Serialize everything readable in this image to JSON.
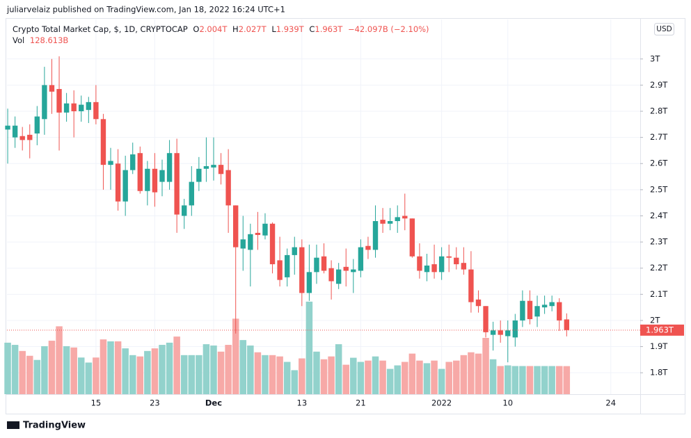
{
  "header": "juliarvelaiz published on TradingView.com, Jan 18, 2022 16:24 UTC+1",
  "footer": "TradingView",
  "currency_button": "USD",
  "legend": {
    "symbol": "Crypto Total Market Cap, $, 1D, CRYPTOCAP",
    "ohlc": [
      {
        "label": "O",
        "value": "2.004T"
      },
      {
        "label": "H",
        "value": "2.027T"
      },
      {
        "label": "L",
        "value": "1.939T"
      },
      {
        "label": "C",
        "value": "1.963T"
      }
    ],
    "change": "−42.097B (−2.10%)",
    "volume_label": "Vol",
    "volume_value": "128.613B"
  },
  "chart_data": {
    "type": "candlestick",
    "up_color": "#26a69a",
    "down_color": "#ef5350",
    "volume_up_color": "#92d2cc",
    "volume_down_color": "#f7a9a7",
    "grid": true,
    "xlim": [
      -0.1,
      86
    ],
    "xticks": [
      {
        "value": 12,
        "label": "15"
      },
      {
        "value": 20,
        "label": "23"
      },
      {
        "value": 28,
        "label": "Dec"
      },
      {
        "value": 40,
        "label": "13"
      },
      {
        "value": 48,
        "label": "21"
      },
      {
        "value": 59,
        "label": "2022"
      },
      {
        "value": 68,
        "label": "10"
      },
      {
        "value": 82,
        "label": "24"
      }
    ],
    "ylim": [
      1.718,
      3.151
    ],
    "yticks": [
      {
        "value": 1.8,
        "label": "1.8T"
      },
      {
        "value": 1.9,
        "label": "1.9T"
      },
      {
        "value": 2.0,
        "label": "2T"
      },
      {
        "value": 2.1,
        "label": "2.1T"
      },
      {
        "value": 2.2,
        "label": "2.2T"
      },
      {
        "value": 2.3,
        "label": "2.3T"
      },
      {
        "value": 2.4,
        "label": "2.4T"
      },
      {
        "value": 2.5,
        "label": "2.5T"
      },
      {
        "value": 2.6,
        "label": "2.6T"
      },
      {
        "value": 2.7,
        "label": "2.7T"
      },
      {
        "value": 2.8,
        "label": "2.8T"
      },
      {
        "value": 2.9,
        "label": "2.9T"
      },
      {
        "value": 3.0,
        "label": "3T"
      }
    ],
    "vlim": [
      0,
      500
    ],
    "last_price": {
      "value": 1.963,
      "label": "1.963T"
    },
    "open": [
      2.73,
      2.7,
      2.705,
      2.71,
      2.715,
      2.77,
      2.9,
      2.885,
      2.795,
      2.83,
      2.8,
      2.805,
      2.835,
      2.77,
      2.595,
      2.6,
      2.455,
      2.575,
      2.64,
      2.495,
      2.58,
      2.53,
      2.53,
      2.64,
      2.4,
      2.44,
      2.53,
      2.58,
      2.585,
      2.595,
      2.575,
      2.44,
      2.275,
      2.27,
      2.335,
      2.325,
      2.37,
      2.23,
      2.165,
      2.25,
      2.28,
      2.105,
      2.185,
      2.245,
      2.2,
      2.14,
      2.205,
      2.185,
      2.19,
      2.285,
      2.27,
      2.385,
      2.37,
      2.38,
      2.4,
      2.39,
      2.245,
      2.185,
      2.215,
      2.185,
      2.245,
      2.24,
      2.22,
      2.195,
      2.08,
      2.055,
      1.945,
      1.962,
      1.94,
      1.935,
      2.0,
      2.075,
      2.015,
      2.05,
      2.055,
      2.07,
      2.004
    ],
    "high": [
      2.81,
      2.78,
      2.74,
      2.75,
      2.82,
      2.97,
      3.0,
      3.01,
      2.87,
      2.88,
      2.86,
      2.855,
      2.9,
      2.79,
      2.66,
      2.655,
      2.63,
      2.68,
      2.665,
      2.61,
      2.64,
      2.615,
      2.69,
      2.695,
      2.465,
      2.59,
      2.625,
      2.7,
      2.7,
      2.64,
      2.655,
      2.44,
      2.4,
      2.37,
      2.415,
      2.41,
      2.375,
      2.32,
      2.275,
      2.32,
      2.31,
      2.29,
      2.29,
      2.295,
      2.23,
      2.22,
      2.275,
      2.235,
      2.31,
      2.32,
      2.44,
      2.43,
      2.43,
      2.44,
      2.485,
      2.39,
      2.295,
      2.255,
      2.29,
      2.28,
      2.29,
      2.28,
      2.28,
      2.265,
      2.115,
      2.055,
      1.995,
      2.0,
      2.0,
      2.025,
      2.115,
      2.115,
      2.095,
      2.095,
      2.095,
      2.085,
      2.027
    ],
    "low": [
      2.6,
      2.66,
      2.65,
      2.62,
      2.67,
      2.71,
      2.79,
      2.65,
      2.76,
      2.7,
      2.76,
      2.755,
      2.75,
      2.5,
      2.5,
      2.42,
      2.4,
      2.56,
      2.485,
      2.44,
      2.435,
      2.475,
      2.5,
      2.335,
      2.35,
      2.4,
      2.495,
      2.53,
      2.535,
      2.52,
      2.335,
      1.95,
      2.19,
      2.13,
      2.27,
      2.31,
      2.18,
      2.13,
      2.13,
      2.175,
      2.055,
      2.075,
      2.14,
      2.18,
      2.08,
      2.12,
      2.13,
      2.105,
      2.165,
      2.235,
      2.24,
      2.335,
      2.345,
      2.335,
      2.345,
      2.24,
      2.16,
      2.15,
      2.16,
      2.155,
      2.185,
      2.195,
      2.175,
      2.03,
      2.03,
      1.935,
      1.885,
      1.915,
      1.84,
      1.9,
      1.975,
      1.985,
      1.975,
      2.025,
      2.035,
      1.96,
      1.939
    ],
    "close": [
      2.745,
      2.745,
      2.69,
      2.69,
      2.78,
      2.9,
      2.875,
      2.795,
      2.83,
      2.8,
      2.825,
      2.835,
      2.77,
      2.595,
      2.61,
      2.455,
      2.575,
      2.635,
      2.495,
      2.58,
      2.49,
      2.575,
      2.64,
      2.405,
      2.44,
      2.53,
      2.58,
      2.59,
      2.595,
      2.56,
      2.44,
      2.28,
      2.31,
      2.33,
      2.327,
      2.37,
      2.215,
      2.155,
      2.25,
      2.28,
      2.105,
      2.185,
      2.24,
      2.19,
      2.15,
      2.195,
      2.19,
      2.195,
      2.28,
      2.27,
      2.38,
      2.37,
      2.38,
      2.395,
      2.39,
      2.245,
      2.19,
      2.21,
      2.185,
      2.245,
      2.24,
      2.215,
      2.195,
      2.07,
      2.055,
      1.955,
      1.962,
      1.945,
      1.962,
      2.0,
      2.075,
      2.005,
      2.055,
      2.06,
      2.07,
      2.0,
      1.963
    ],
    "volume": [
      236,
      226,
      198,
      176,
      157,
      220,
      245,
      311,
      220,
      214,
      168,
      145,
      168,
      251,
      242,
      242,
      210,
      179,
      173,
      198,
      210,
      226,
      236,
      264,
      179,
      179,
      179,
      229,
      223,
      195,
      226,
      346,
      248,
      223,
      192,
      179,
      179,
      173,
      148,
      110,
      164,
      424,
      195,
      160,
      173,
      229,
      135,
      167,
      148,
      154,
      173,
      154,
      116,
      132,
      148,
      186,
      154,
      142,
      154,
      116,
      148,
      154,
      179,
      192,
      186,
      258,
      160,
      129,
      132,
      129,
      129,
      129,
      129,
      129,
      129,
      129,
      128.613
    ]
  }
}
